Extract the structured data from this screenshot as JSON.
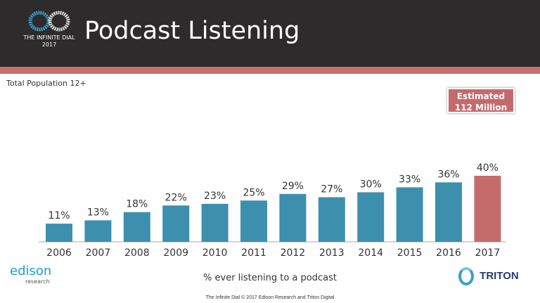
{
  "header": {
    "title": "Podcast Listening",
    "logo_text": "THE INFINITE DIAL",
    "logo_year": "2017"
  },
  "subtitle": "Total Population 12+",
  "callout": {
    "line1": "Estimated",
    "line2": "112 Million"
  },
  "footer": "The Infinite Dial  © 2017 Edison Research and Triton Digital",
  "logos": {
    "edison": "edison",
    "edison_sub": "research",
    "triton": "TRITON"
  },
  "chart_data": {
    "type": "bar",
    "title": "Podcast Listening",
    "xlabel": "% ever listening to a podcast",
    "ylabel": "",
    "categories": [
      "2006",
      "2007",
      "2008",
      "2009",
      "2010",
      "2011",
      "2012",
      "2013",
      "2014",
      "2015",
      "2016",
      "2017"
    ],
    "values": [
      11,
      13,
      18,
      22,
      23,
      25,
      29,
      27,
      30,
      33,
      36,
      40
    ],
    "data_labels": [
      "11%",
      "13%",
      "18%",
      "22%",
      "23%",
      "25%",
      "29%",
      "27%",
      "30%",
      "33%",
      "36%",
      "40%"
    ],
    "ylim": [
      0,
      40
    ],
    "grid": false,
    "colors": {
      "default": "#3d8fae",
      "highlight": "#c46c6c"
    },
    "highlight_index": 11
  }
}
